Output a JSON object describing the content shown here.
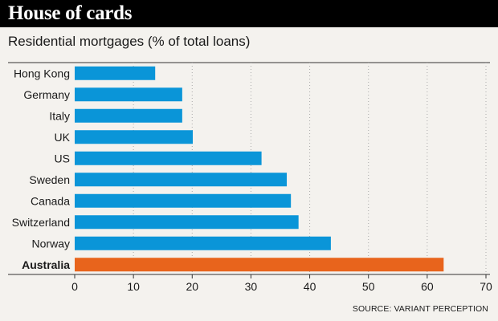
{
  "header": {
    "title": "House of cards",
    "subtitle": "Residential mortgages (% of total loans)",
    "source": "SOURCE: VARIANT PERCEPTION"
  },
  "colors": {
    "default_bar": "#0a95d8",
    "highlight_bar": "#e8641c",
    "background": "#f4f2ee",
    "title_bar": "#000000",
    "gridline": "#aaaaaa"
  },
  "chart_data": {
    "type": "bar",
    "orientation": "horizontal",
    "title": "Residential mortgages (% of total loans)",
    "categories": [
      "Hong Kong",
      "Germany",
      "Italy",
      "UK",
      "US",
      "Sweden",
      "Canada",
      "Switzerland",
      "Norway",
      "Australia"
    ],
    "values": [
      13.7,
      18.3,
      18.3,
      20.1,
      31.8,
      36.1,
      36.8,
      38.1,
      43.6,
      62.8
    ],
    "highlight": "Australia",
    "xlim": [
      0,
      70
    ],
    "xticks": [
      0,
      10,
      20,
      30,
      40,
      50,
      60,
      70
    ],
    "grid": "vertical dotted",
    "xlabel": "",
    "ylabel": ""
  }
}
